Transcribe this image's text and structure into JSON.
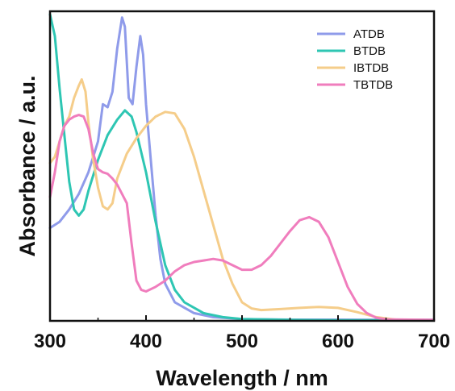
{
  "chart_data": {
    "type": "line",
    "xlabel": "Wavelength / nm",
    "ylabel": "Absorbance / a.u.",
    "xlim": [
      300,
      700
    ],
    "ylim": [
      0,
      1.0
    ],
    "x_ticks": [
      "300",
      "400",
      "500",
      "600",
      "700"
    ],
    "y_ticks_shown": false,
    "grid": false,
    "legend_position": "top-right",
    "series": [
      {
        "name": "ATDB",
        "color": "#8f9bea",
        "points": [
          [
            300,
            0.3
          ],
          [
            310,
            0.32
          ],
          [
            320,
            0.36
          ],
          [
            330,
            0.41
          ],
          [
            340,
            0.48
          ],
          [
            350,
            0.58
          ],
          [
            355,
            0.7
          ],
          [
            360,
            0.69
          ],
          [
            365,
            0.74
          ],
          [
            370,
            0.88
          ],
          [
            375,
            0.98
          ],
          [
            378,
            0.95
          ],
          [
            382,
            0.72
          ],
          [
            386,
            0.7
          ],
          [
            390,
            0.82
          ],
          [
            394,
            0.92
          ],
          [
            397,
            0.86
          ],
          [
            400,
            0.7
          ],
          [
            405,
            0.52
          ],
          [
            410,
            0.34
          ],
          [
            415,
            0.2
          ],
          [
            420,
            0.12
          ],
          [
            430,
            0.06
          ],
          [
            450,
            0.025
          ],
          [
            470,
            0.012
          ],
          [
            500,
            0.006
          ],
          [
            550,
            0.004
          ],
          [
            600,
            0.004
          ],
          [
            650,
            0.003
          ],
          [
            700,
            0.003
          ]
        ]
      },
      {
        "name": "BTDB",
        "color": "#2ec6b3",
        "points": [
          [
            300,
            0.99
          ],
          [
            305,
            0.92
          ],
          [
            310,
            0.75
          ],
          [
            315,
            0.6
          ],
          [
            320,
            0.45
          ],
          [
            325,
            0.36
          ],
          [
            330,
            0.34
          ],
          [
            335,
            0.36
          ],
          [
            340,
            0.42
          ],
          [
            350,
            0.52
          ],
          [
            360,
            0.6
          ],
          [
            370,
            0.65
          ],
          [
            378,
            0.68
          ],
          [
            385,
            0.66
          ],
          [
            390,
            0.61
          ],
          [
            400,
            0.48
          ],
          [
            410,
            0.32
          ],
          [
            420,
            0.18
          ],
          [
            430,
            0.1
          ],
          [
            440,
            0.06
          ],
          [
            460,
            0.025
          ],
          [
            480,
            0.012
          ],
          [
            500,
            0.006
          ],
          [
            550,
            0.003
          ],
          [
            600,
            0.002
          ],
          [
            700,
            0.002
          ]
        ]
      },
      {
        "name": "IBTDB",
        "color": "#f5cd8a",
        "points": [
          [
            300,
            0.51
          ],
          [
            305,
            0.53
          ],
          [
            310,
            0.58
          ],
          [
            315,
            0.63
          ],
          [
            320,
            0.66
          ],
          [
            325,
            0.72
          ],
          [
            330,
            0.76
          ],
          [
            333,
            0.78
          ],
          [
            337,
            0.74
          ],
          [
            340,
            0.64
          ],
          [
            345,
            0.52
          ],
          [
            350,
            0.43
          ],
          [
            355,
            0.37
          ],
          [
            360,
            0.36
          ],
          [
            365,
            0.38
          ],
          [
            370,
            0.46
          ],
          [
            380,
            0.54
          ],
          [
            390,
            0.59
          ],
          [
            400,
            0.63
          ],
          [
            410,
            0.66
          ],
          [
            420,
            0.675
          ],
          [
            430,
            0.67
          ],
          [
            440,
            0.62
          ],
          [
            450,
            0.53
          ],
          [
            460,
            0.42
          ],
          [
            470,
            0.31
          ],
          [
            480,
            0.2
          ],
          [
            490,
            0.12
          ],
          [
            500,
            0.06
          ],
          [
            510,
            0.04
          ],
          [
            520,
            0.035
          ],
          [
            540,
            0.038
          ],
          [
            560,
            0.042
          ],
          [
            580,
            0.045
          ],
          [
            600,
            0.042
          ],
          [
            620,
            0.028
          ],
          [
            640,
            0.012
          ],
          [
            660,
            0.004
          ],
          [
            700,
            0.002
          ]
        ]
      },
      {
        "name": "TBTDB",
        "color": "#f07dbd",
        "points": [
          [
            300,
            0.4
          ],
          [
            305,
            0.48
          ],
          [
            310,
            0.58
          ],
          [
            315,
            0.63
          ],
          [
            320,
            0.65
          ],
          [
            325,
            0.66
          ],
          [
            330,
            0.665
          ],
          [
            335,
            0.66
          ],
          [
            340,
            0.62
          ],
          [
            345,
            0.54
          ],
          [
            350,
            0.49
          ],
          [
            355,
            0.48
          ],
          [
            360,
            0.475
          ],
          [
            365,
            0.46
          ],
          [
            370,
            0.44
          ],
          [
            380,
            0.38
          ],
          [
            385,
            0.25
          ],
          [
            390,
            0.13
          ],
          [
            395,
            0.1
          ],
          [
            400,
            0.095
          ],
          [
            410,
            0.11
          ],
          [
            420,
            0.13
          ],
          [
            430,
            0.16
          ],
          [
            440,
            0.18
          ],
          [
            450,
            0.19
          ],
          [
            460,
            0.195
          ],
          [
            470,
            0.2
          ],
          [
            480,
            0.195
          ],
          [
            490,
            0.18
          ],
          [
            500,
            0.165
          ],
          [
            510,
            0.165
          ],
          [
            520,
            0.18
          ],
          [
            530,
            0.21
          ],
          [
            540,
            0.25
          ],
          [
            550,
            0.29
          ],
          [
            560,
            0.325
          ],
          [
            570,
            0.335
          ],
          [
            580,
            0.32
          ],
          [
            590,
            0.27
          ],
          [
            600,
            0.19
          ],
          [
            610,
            0.11
          ],
          [
            620,
            0.055
          ],
          [
            630,
            0.025
          ],
          [
            640,
            0.01
          ],
          [
            650,
            0.005
          ],
          [
            700,
            0.003
          ]
        ]
      }
    ]
  }
}
